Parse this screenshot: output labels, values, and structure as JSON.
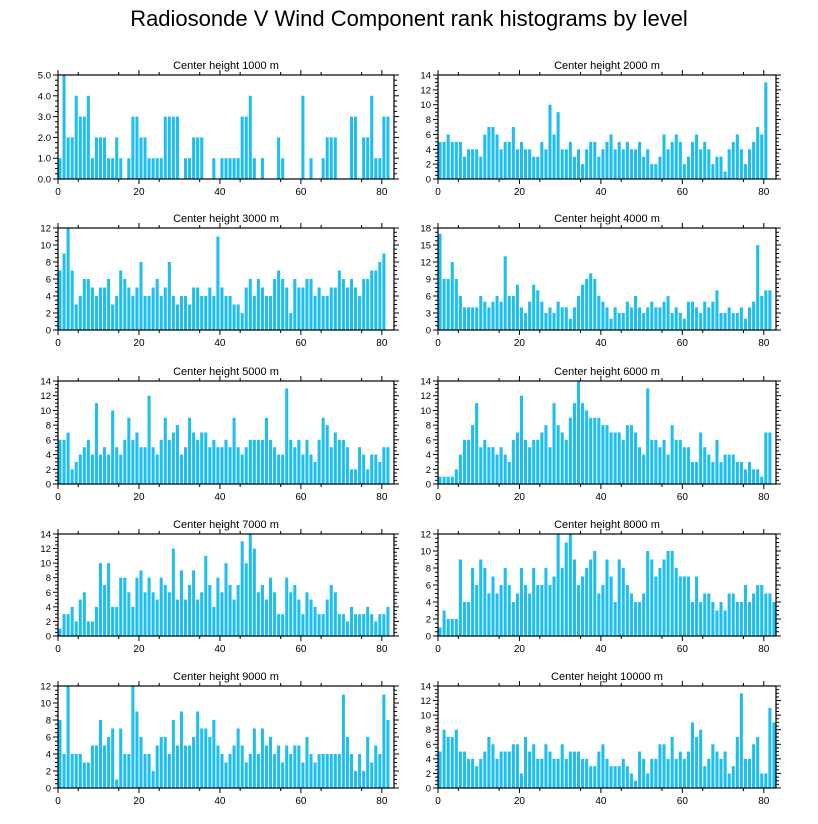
{
  "title": "Radiosonde V Wind Component rank histograms by level",
  "bar_color": "#1ebff0",
  "chart_data": [
    {
      "type": "bar",
      "title": "Center height 1000 m",
      "xlim": [
        0,
        83
      ],
      "ylim": [
        0,
        5
      ],
      "yticks": [
        "0.0",
        "1.0",
        "2.0",
        "3.0",
        "4.0",
        "5.0"
      ],
      "xticks": [
        "0",
        "20",
        "40",
        "60",
        "80"
      ],
      "values": [
        1,
        5,
        2,
        2,
        4,
        3,
        3,
        4,
        1,
        2,
        2,
        2,
        1,
        1,
        2,
        1,
        0,
        1,
        3,
        3,
        2,
        2,
        1,
        1,
        1,
        1,
        3,
        3,
        3,
        3,
        0,
        1,
        1,
        2,
        2,
        2,
        0,
        0,
        1,
        0,
        1,
        1,
        1,
        1,
        1,
        3,
        3,
        4,
        1,
        0,
        1,
        0,
        0,
        0,
        2,
        1,
        0,
        0,
        0,
        0,
        4,
        0,
        1,
        0,
        0,
        1,
        2,
        2,
        2,
        0,
        0,
        0,
        3,
        3,
        0,
        2,
        2,
        4,
        1,
        1,
        3,
        3
      ]
    },
    {
      "type": "bar",
      "title": "Center height 2000 m",
      "xlim": [
        0,
        83
      ],
      "ylim": [
        0,
        14
      ],
      "yticks": [
        "0",
        "2",
        "4",
        "6",
        "8",
        "10",
        "12",
        "14"
      ],
      "xticks": [
        "0",
        "20",
        "40",
        "60",
        "80"
      ],
      "values": [
        5,
        5,
        6,
        5,
        5,
        5,
        3,
        4,
        4,
        4,
        3,
        6,
        7,
        7,
        6,
        4,
        5,
        5,
        7,
        4,
        5,
        4,
        4,
        3,
        3,
        5,
        4,
        10,
        6,
        9,
        4,
        4,
        5,
        3,
        4,
        2,
        4,
        5,
        5,
        3,
        4,
        5,
        6,
        4,
        5,
        4,
        5,
        4,
        4,
        5,
        3,
        4,
        2,
        2,
        3,
        6,
        4,
        5,
        6,
        5,
        2,
        3,
        5,
        6,
        4,
        5,
        4,
        2,
        3,
        3,
        1,
        4,
        5,
        6,
        4,
        2,
        4,
        5,
        7,
        6,
        13
      ]
    },
    {
      "type": "bar",
      "title": "Center height 3000 m",
      "xlim": [
        0,
        83
      ],
      "ylim": [
        0,
        12
      ],
      "yticks": [
        "0",
        "2",
        "4",
        "6",
        "8",
        "10",
        "12"
      ],
      "xticks": [
        "0",
        "20",
        "40",
        "60",
        "80"
      ],
      "values": [
        7,
        9,
        12,
        7,
        3,
        4,
        6,
        6,
        5,
        4,
        5,
        5,
        6,
        3,
        4,
        7,
        6,
        5,
        4,
        5,
        8,
        4,
        4,
        5,
        6,
        4,
        5,
        8,
        4,
        3,
        4,
        4,
        3,
        5,
        5,
        4,
        4,
        5,
        4,
        11,
        5,
        4,
        4,
        3,
        3,
        2,
        5,
        6,
        4,
        6,
        5,
        4,
        4,
        6,
        7,
        6,
        5,
        2,
        6,
        5,
        5,
        6,
        6,
        4,
        5,
        4,
        4,
        5,
        5,
        7,
        6,
        5,
        6,
        5,
        4,
        6,
        6,
        7,
        7,
        8,
        9
      ]
    },
    {
      "type": "bar",
      "title": "Center height 4000 m",
      "xlim": [
        0,
        83
      ],
      "ylim": [
        0,
        18
      ],
      "yticks": [
        "0",
        "3",
        "6",
        "9",
        "12",
        "15",
        "18"
      ],
      "xticks": [
        "0",
        "20",
        "40",
        "60",
        "80"
      ],
      "values": [
        17,
        9,
        9,
        12,
        9,
        6,
        4,
        4,
        4,
        4,
        6,
        5,
        4,
        5,
        6,
        5,
        13,
        6,
        6,
        8,
        4,
        3,
        5,
        8,
        7,
        5,
        3,
        4,
        3,
        5,
        4,
        4,
        2,
        4,
        6,
        8,
        9,
        10,
        9,
        6,
        5,
        4,
        2,
        4,
        3,
        3,
        5,
        4,
        6,
        4,
        3,
        4,
        5,
        4,
        4,
        5,
        6,
        3,
        4,
        3,
        2,
        5,
        5,
        4,
        3,
        5,
        4,
        5,
        7,
        3,
        3,
        4,
        3,
        3,
        4,
        2,
        4,
        5,
        15,
        6,
        7,
        7
      ]
    },
    {
      "type": "bar",
      "title": "Center height 5000 m",
      "xlim": [
        0,
        83
      ],
      "ylim": [
        0,
        14
      ],
      "yticks": [
        "0",
        "2",
        "4",
        "6",
        "8",
        "10",
        "12",
        "14"
      ],
      "xticks": [
        "0",
        "20",
        "40",
        "60",
        "80"
      ],
      "values": [
        6,
        6,
        7,
        2,
        3,
        4,
        5,
        6,
        4,
        11,
        4,
        5,
        4,
        10,
        5,
        4,
        6,
        9,
        6,
        7,
        5,
        5,
        12,
        5,
        4,
        6,
        9,
        6,
        7,
        8,
        4,
        5,
        9,
        7,
        6,
        7,
        7,
        5,
        6,
        5,
        5,
        6,
        5,
        9,
        5,
        4,
        5,
        6,
        6,
        6,
        6,
        9,
        6,
        5,
        4,
        4,
        13,
        6,
        5,
        6,
        4,
        6,
        4,
        3,
        6,
        9,
        8,
        5,
        7,
        6,
        6,
        5,
        2,
        2,
        5,
        4,
        2,
        4,
        4,
        3,
        5,
        5
      ]
    },
    {
      "type": "bar",
      "title": "Center height 6000 m",
      "xlim": [
        0,
        83
      ],
      "ylim": [
        0,
        14
      ],
      "yticks": [
        "0",
        "2",
        "4",
        "6",
        "8",
        "10",
        "12",
        "14"
      ],
      "xticks": [
        "0",
        "20",
        "40",
        "60",
        "80"
      ],
      "values": [
        1,
        1,
        1,
        1,
        2,
        4,
        6,
        6,
        8,
        11,
        5,
        6,
        5,
        5,
        4,
        5,
        4,
        3,
        6,
        7,
        12,
        6,
        5,
        6,
        6,
        7,
        8,
        5,
        11,
        8,
        7,
        6,
        9,
        11,
        14,
        11,
        10,
        9,
        9,
        9,
        8,
        8,
        7,
        7,
        7,
        6,
        8,
        8,
        7,
        5,
        4,
        13,
        6,
        6,
        5,
        6,
        4,
        8,
        6,
        6,
        5,
        5,
        3,
        3,
        7,
        5,
        4,
        3,
        6,
        3,
        4,
        4,
        4,
        3,
        3,
        2,
        3,
        2,
        2,
        1,
        7,
        7
      ]
    },
    {
      "type": "bar",
      "title": "Center height 7000 m",
      "xlim": [
        0,
        83
      ],
      "ylim": [
        0,
        14
      ],
      "yticks": [
        "0",
        "2",
        "4",
        "6",
        "8",
        "10",
        "12",
        "14"
      ],
      "xticks": [
        "0",
        "20",
        "40",
        "60",
        "80"
      ],
      "values": [
        1,
        3,
        3,
        4,
        2,
        5,
        6,
        2,
        2,
        4,
        10,
        7,
        10,
        4,
        4,
        8,
        8,
        6,
        4,
        8,
        9,
        6,
        8,
        6,
        5,
        8,
        7,
        6,
        12,
        5,
        9,
        5,
        7,
        9,
        5,
        6,
        11,
        7,
        4,
        8,
        6,
        10,
        7,
        5,
        7,
        13,
        10,
        14,
        12,
        6,
        7,
        5,
        8,
        6,
        3,
        3,
        8,
        6,
        7,
        5,
        3,
        6,
        5,
        4,
        3,
        3,
        5,
        7,
        6,
        3,
        3,
        2,
        4,
        3,
        3,
        3,
        4,
        3,
        2,
        3,
        3,
        4
      ]
    },
    {
      "type": "bar",
      "title": "Center height 8000 m",
      "xlim": [
        0,
        83
      ],
      "ylim": [
        0,
        12
      ],
      "yticks": [
        "0",
        "2",
        "4",
        "6",
        "8",
        "10",
        "12"
      ],
      "xticks": [
        "0",
        "20",
        "40",
        "60",
        "80"
      ],
      "values": [
        1,
        3,
        2,
        2,
        2,
        9,
        4,
        4,
        8,
        6,
        9,
        8,
        5,
        7,
        5,
        6,
        8,
        6,
        4,
        5,
        8,
        6,
        5,
        8,
        6,
        6,
        8,
        6,
        7,
        12,
        8,
        11,
        12,
        9,
        6,
        7,
        8,
        9,
        10,
        5,
        6,
        9,
        7,
        4,
        9,
        8,
        6,
        5,
        4,
        4,
        5,
        10,
        9,
        7,
        8,
        9,
        10,
        10,
        8,
        7,
        7,
        7,
        4,
        7,
        4,
        5,
        5,
        4,
        3,
        4,
        3,
        5,
        5,
        4,
        4,
        6,
        4,
        5,
        6,
        6,
        5,
        5,
        4
      ]
    },
    {
      "type": "bar",
      "title": "Center height 9000 m",
      "xlim": [
        0,
        83
      ],
      "ylim": [
        0,
        12
      ],
      "yticks": [
        "0",
        "2",
        "4",
        "6",
        "8",
        "10",
        "12"
      ],
      "xticks": [
        "0",
        "20",
        "40",
        "60",
        "80"
      ],
      "values": [
        8,
        4,
        12,
        4,
        4,
        4,
        3,
        3,
        5,
        5,
        8,
        5,
        6,
        7,
        1,
        7,
        4,
        4,
        12,
        9,
        6,
        4,
        4,
        2,
        5,
        6,
        6,
        4,
        8,
        5,
        9,
        5,
        5,
        6,
        9,
        7,
        7,
        6,
        8,
        5,
        4,
        3,
        4,
        5,
        7,
        5,
        3,
        4,
        7,
        4,
        7,
        5,
        6,
        4,
        5,
        3,
        5,
        4,
        5,
        5,
        3,
        6,
        4,
        3,
        4,
        4,
        4,
        4,
        4,
        4,
        11,
        6,
        4,
        2,
        4,
        2,
        6,
        3,
        5,
        4,
        11,
        8
      ]
    },
    {
      "type": "bar",
      "title": "Center height 10000 m",
      "xlim": [
        0,
        83
      ],
      "ylim": [
        0,
        14
      ],
      "yticks": [
        "0",
        "2",
        "4",
        "6",
        "8",
        "10",
        "12",
        "14"
      ],
      "xticks": [
        "0",
        "20",
        "40",
        "60",
        "80"
      ],
      "values": [
        5,
        8,
        7,
        7,
        8,
        5,
        5,
        4,
        4,
        3,
        4,
        5,
        7,
        6,
        4,
        5,
        5,
        5,
        6,
        6,
        2,
        7,
        5,
        6,
        4,
        4,
        6,
        5,
        4,
        4,
        6,
        4,
        5,
        5,
        5,
        4,
        4,
        3,
        3,
        5,
        6,
        4,
        3,
        3,
        3,
        4,
        3,
        2,
        1,
        5,
        4,
        2,
        4,
        4,
        6,
        6,
        4,
        7,
        4,
        5,
        4,
        5,
        9,
        7,
        8,
        3,
        4,
        6,
        5,
        4,
        5,
        2,
        3,
        7,
        13,
        4,
        4,
        6,
        7,
        2,
        2,
        11,
        9
      ]
    }
  ]
}
